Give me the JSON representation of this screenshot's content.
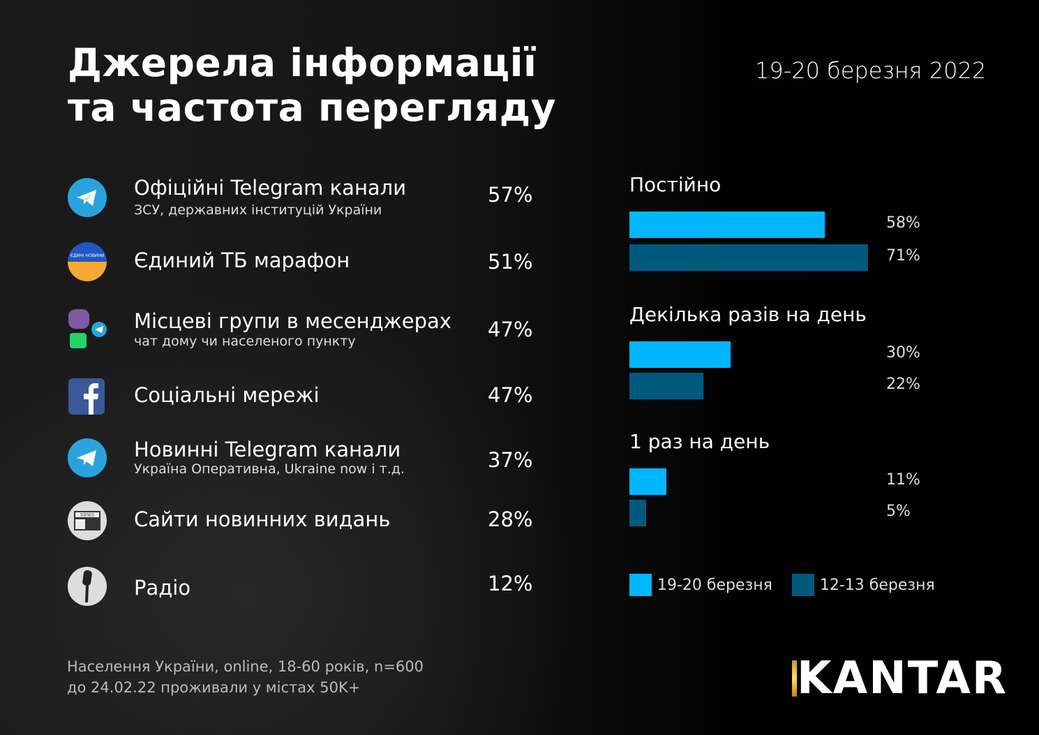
{
  "title": [
    "Джерела інформації",
    "та частота перегляду"
  ],
  "date": "19-20 березня 2022",
  "sources": [
    {
      "label": "Офіційні Telegram канали",
      "sub": "ЗСУ, державних інституцій України",
      "pct": "57%",
      "icon": "telegram-icon"
    },
    {
      "label": "Єдиний ТБ марафон",
      "sub": "",
      "pct": "51%",
      "icon": "tv-marathon-icon",
      "logo_text": "ЄДИНІ НОВИНИ"
    },
    {
      "label": "Місцеві групи в месенджерах",
      "sub": "чат дому чи населеного пункту",
      "pct": "47%",
      "icon": "messengers-icon"
    },
    {
      "label": "Соціальні мережі",
      "sub": "",
      "pct": "47%",
      "icon": "facebook-icon"
    },
    {
      "label": "Новинні Telegram канали",
      "sub": "Україна Оперативна, Ukraine now і т.д.",
      "pct": "37%",
      "icon": "telegram-icon"
    },
    {
      "label": "Сайти новинних видань",
      "sub": "",
      "pct": "28%",
      "icon": "newspaper-icon",
      "logo_text": "NEWS"
    },
    {
      "label": "Радіо",
      "sub": "",
      "pct": "12%",
      "icon": "microphone-icon"
    }
  ],
  "chart_data": {
    "type": "bar",
    "orientation": "horizontal",
    "categories": [
      "Постійно",
      "Декілька разів на день",
      "1 раз на день"
    ],
    "series": [
      {
        "name": "19-20 березня",
        "color": "#00b7ff",
        "values": [
          58,
          30,
          11
        ],
        "labels": [
          "58%",
          "30%",
          "11%"
        ]
      },
      {
        "name": "12-13 березня",
        "color": "#005a7e",
        "values": [
          71,
          22,
          5
        ],
        "labels": [
          "71%",
          "22%",
          "5%"
        ]
      }
    ],
    "unit": "%",
    "legend": "bottom"
  },
  "footnote": [
    "Населення України, online, 18-60 років, n=600",
    "до 24.02.22 проживали у містах 50K+"
  ],
  "brand": "KANTAR"
}
